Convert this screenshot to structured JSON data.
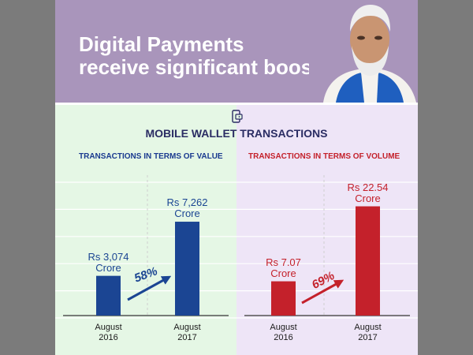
{
  "header": {
    "headline_line1": "Digital Payments",
    "headline_line2": "receive significant boost",
    "background": "#a995bb"
  },
  "section": {
    "icon": "mobile-wallet-icon",
    "title": "MOBILE WALLET TRANSACTIONS"
  },
  "colors": {
    "value_bar": "#1b4593",
    "volume_bar": "#c4212b",
    "value_panel": "#e5f7e5",
    "volume_panel": "#eee5f7"
  },
  "chart_data": [
    {
      "type": "bar",
      "title": "TRANSACTIONS IN TERMS OF VALUE",
      "categories": [
        "August 2016",
        "August 2017"
      ],
      "category_lines": [
        [
          "August",
          "2016"
        ],
        [
          "August",
          "2017"
        ]
      ],
      "values": [
        3074,
        7262
      ],
      "data_labels": [
        [
          "Rs 3,074",
          "Crore"
        ],
        [
          "Rs 7,262",
          "Crore"
        ]
      ],
      "growth_label": "58%",
      "unit": "Rs Crore",
      "ylim": [
        0,
        10500
      ],
      "grid": true,
      "color": "#1b4593"
    },
    {
      "type": "bar",
      "title": "TRANSACTIONS IN TERMS OF VOLUME",
      "categories": [
        "August 2016",
        "August 2017"
      ],
      "category_lines": [
        [
          "August",
          "2016"
        ],
        [
          "August",
          "2017"
        ]
      ],
      "values": [
        7.07,
        22.54
      ],
      "data_labels": [
        [
          "Rs 7.07",
          "Crore"
        ],
        [
          "Rs 22.54",
          "Crore"
        ]
      ],
      "growth_label": "69%",
      "unit": "Crore",
      "ylim": [
        0,
        28
      ],
      "grid": true,
      "color": "#c4212b"
    }
  ]
}
